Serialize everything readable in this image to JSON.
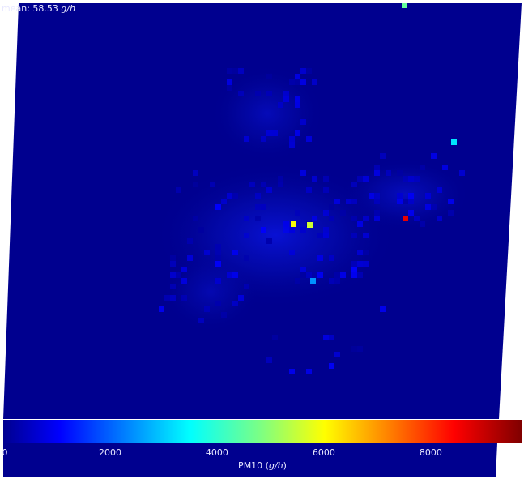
{
  "map": {
    "stat_prefix": "mean: ",
    "stat_value": "58.53",
    "stat_unit": "g/h",
    "background_color": "#00008f",
    "grid_color": "#00009a"
  },
  "colorbar": {
    "label_prefix": "PM10 (",
    "label_unit": "g/h",
    "label_suffix": ")",
    "min": 0,
    "max": 9700,
    "colormap": "jet",
    "ticks": [
      {
        "value": 0,
        "label": "0"
      },
      {
        "value": 2000,
        "label": "2000"
      },
      {
        "value": 4000,
        "label": "4000"
      },
      {
        "value": 6000,
        "label": "6000"
      },
      {
        "value": 8000,
        "label": "8000"
      }
    ]
  },
  "hotspots": [
    {
      "name": "hotspot-red",
      "value": 8700
    },
    {
      "name": "hotspot-yellow-1",
      "value": 6000
    },
    {
      "name": "hotspot-yellow-2",
      "value": 5600
    },
    {
      "name": "hotspot-green",
      "value": 4600
    },
    {
      "name": "hotspot-cyan-1",
      "value": 3400
    },
    {
      "name": "hotspot-cyan-2",
      "value": 2600
    }
  ]
}
